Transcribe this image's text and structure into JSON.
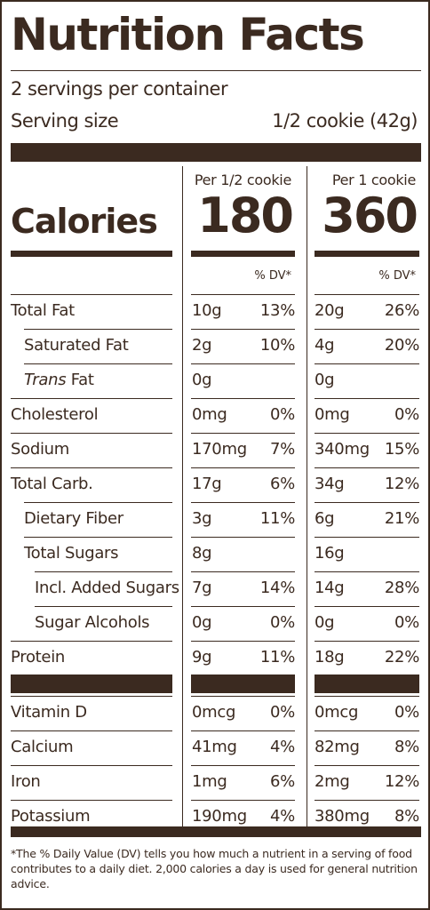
{
  "title": "Nutrition Facts",
  "servings_per_container": "2 servings per container",
  "serving_size_label": "Serving size",
  "serving_size_value": "1/2 cookie (42g)",
  "columns": [
    {
      "header": "Per 1/2 cookie",
      "calories": "180",
      "dv_header": "% DV*"
    },
    {
      "header": "Per 1 cookie",
      "calories": "360",
      "dv_header": "% DV*"
    }
  ],
  "calories_label": "Calories",
  "nutrients": [
    {
      "name": "Total Fat",
      "indent": 0,
      "values": [
        [
          "10g",
          "13%"
        ],
        [
          "20g",
          "26%"
        ]
      ]
    },
    {
      "name": "Saturated Fat",
      "indent": 1,
      "values": [
        [
          "2g",
          "10%"
        ],
        [
          "4g",
          "20%"
        ]
      ]
    },
    {
      "name_italic": "Trans",
      "name": " Fat",
      "indent": 1,
      "values": [
        [
          "0g",
          ""
        ],
        [
          "0g",
          ""
        ]
      ]
    },
    {
      "name": "Cholesterol",
      "indent": 0,
      "values": [
        [
          "0mg",
          "0%"
        ],
        [
          "0mg",
          "0%"
        ]
      ]
    },
    {
      "name": "Sodium",
      "indent": 0,
      "values": [
        [
          "170mg",
          "7%"
        ],
        [
          "340mg",
          "15%"
        ]
      ]
    },
    {
      "name": "Total Carb.",
      "indent": 0,
      "values": [
        [
          "17g",
          "6%"
        ],
        [
          "34g",
          "12%"
        ]
      ]
    },
    {
      "name": "Dietary Fiber",
      "indent": 1,
      "values": [
        [
          "3g",
          "11%"
        ],
        [
          "6g",
          "21%"
        ]
      ]
    },
    {
      "name": "Total Sugars",
      "indent": 1,
      "values": [
        [
          "8g",
          ""
        ],
        [
          "16g",
          ""
        ]
      ]
    },
    {
      "name": "Incl. Added Sugars",
      "indent": 2,
      "values": [
        [
          "7g",
          "14%"
        ],
        [
          "14g",
          "28%"
        ]
      ]
    },
    {
      "name": "Sugar Alcohols",
      "indent": 2,
      "values": [
        [
          "0g",
          "0%"
        ],
        [
          "0g",
          "0%"
        ]
      ]
    },
    {
      "name": "Protein",
      "indent": 0,
      "values": [
        [
          "9g",
          "11%"
        ],
        [
          "18g",
          "22%"
        ]
      ]
    }
  ],
  "vitamins": [
    {
      "name": "Vitamin D",
      "values": [
        [
          "0mcg",
          "0%"
        ],
        [
          "0mcg",
          "0%"
        ]
      ]
    },
    {
      "name": "Calcium",
      "values": [
        [
          "41mg",
          "4%"
        ],
        [
          "82mg",
          "8%"
        ]
      ]
    },
    {
      "name": "Iron",
      "values": [
        [
          "1mg",
          "6%"
        ],
        [
          "2mg",
          "12%"
        ]
      ]
    },
    {
      "name": "Potassium",
      "values": [
        [
          "190mg",
          "4%"
        ],
        [
          "380mg",
          "8%"
        ]
      ]
    }
  ],
  "footnote": "*The % Daily Value (DV) tells you how much a nutrient in a serving of food contributes to a daily diet. 2,000 calories a day is used for general nutrition advice."
}
